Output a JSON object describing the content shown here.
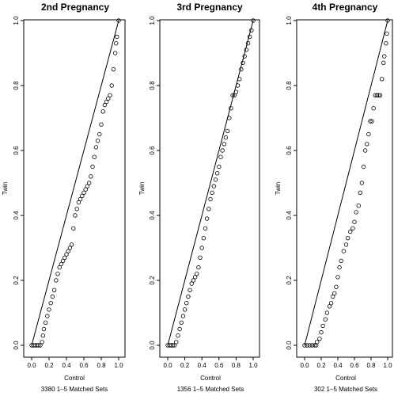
{
  "chart_data": [
    {
      "type": "scatter",
      "title": "2nd Pregnancy",
      "xlabel": "Control",
      "ylabel": "Twin",
      "subtitle": "3380 1–5 Matched Sets",
      "xlim": [
        0,
        1
      ],
      "ylim": [
        0,
        1
      ],
      "x_ticks": [
        "0.0",
        "0.2",
        "0.4",
        "0.6",
        "0.8",
        "1.0"
      ],
      "y_ticks": [
        "0.0",
        "0.2",
        "0.4",
        "0.6",
        "0.8",
        "1.0"
      ],
      "reference_line": "y = x",
      "marker": "open circle",
      "points": [
        [
          0.0,
          0.0
        ],
        [
          0.02,
          0.0
        ],
        [
          0.04,
          0.0
        ],
        [
          0.06,
          0.0
        ],
        [
          0.08,
          0.0
        ],
        [
          0.1,
          0.0
        ],
        [
          0.12,
          0.01
        ],
        [
          0.13,
          0.03
        ],
        [
          0.14,
          0.05
        ],
        [
          0.16,
          0.07
        ],
        [
          0.18,
          0.09
        ],
        [
          0.2,
          0.11
        ],
        [
          0.22,
          0.13
        ],
        [
          0.24,
          0.15
        ],
        [
          0.26,
          0.17
        ],
        [
          0.28,
          0.2
        ],
        [
          0.3,
          0.22
        ],
        [
          0.32,
          0.24
        ],
        [
          0.34,
          0.25
        ],
        [
          0.36,
          0.26
        ],
        [
          0.38,
          0.27
        ],
        [
          0.4,
          0.28
        ],
        [
          0.42,
          0.29
        ],
        [
          0.44,
          0.3
        ],
        [
          0.46,
          0.31
        ],
        [
          0.48,
          0.36
        ],
        [
          0.5,
          0.4
        ],
        [
          0.52,
          0.42
        ],
        [
          0.54,
          0.44
        ],
        [
          0.56,
          0.45
        ],
        [
          0.58,
          0.46
        ],
        [
          0.6,
          0.47
        ],
        [
          0.62,
          0.48
        ],
        [
          0.64,
          0.49
        ],
        [
          0.66,
          0.5
        ],
        [
          0.68,
          0.52
        ],
        [
          0.7,
          0.55
        ],
        [
          0.72,
          0.58
        ],
        [
          0.74,
          0.61
        ],
        [
          0.76,
          0.63
        ],
        [
          0.78,
          0.65
        ],
        [
          0.8,
          0.68
        ],
        [
          0.82,
          0.72
        ],
        [
          0.84,
          0.74
        ],
        [
          0.86,
          0.75
        ],
        [
          0.88,
          0.76
        ],
        [
          0.9,
          0.77
        ],
        [
          0.92,
          0.8
        ],
        [
          0.94,
          0.85
        ],
        [
          0.96,
          0.9
        ],
        [
          0.97,
          0.93
        ],
        [
          0.98,
          0.95
        ],
        [
          1.0,
          1.0
        ]
      ]
    },
    {
      "type": "scatter",
      "title": "3rd Pregnancy",
      "xlabel": "Control",
      "ylabel": "Twin",
      "subtitle": "1356 1–5 Matched Sets",
      "xlim": [
        0,
        1
      ],
      "ylim": [
        0,
        1
      ],
      "x_ticks": [
        "0.0",
        "0.2",
        "0.4",
        "0.6",
        "0.8",
        "1.0"
      ],
      "y_ticks": [
        "0.0",
        "0.2",
        "0.4",
        "0.6",
        "0.8",
        "1.0"
      ],
      "reference_line": "y = x",
      "marker": "open circle",
      "points": [
        [
          0.0,
          0.0
        ],
        [
          0.02,
          0.0
        ],
        [
          0.04,
          0.0
        ],
        [
          0.06,
          0.0
        ],
        [
          0.08,
          0.0
        ],
        [
          0.1,
          0.01
        ],
        [
          0.12,
          0.03
        ],
        [
          0.14,
          0.05
        ],
        [
          0.16,
          0.07
        ],
        [
          0.18,
          0.09
        ],
        [
          0.2,
          0.11
        ],
        [
          0.22,
          0.13
        ],
        [
          0.24,
          0.15
        ],
        [
          0.26,
          0.17
        ],
        [
          0.28,
          0.19
        ],
        [
          0.3,
          0.2
        ],
        [
          0.32,
          0.21
        ],
        [
          0.34,
          0.22
        ],
        [
          0.36,
          0.24
        ],
        [
          0.38,
          0.27
        ],
        [
          0.4,
          0.3
        ],
        [
          0.42,
          0.33
        ],
        [
          0.44,
          0.36
        ],
        [
          0.46,
          0.39
        ],
        [
          0.48,
          0.42
        ],
        [
          0.5,
          0.45
        ],
        [
          0.52,
          0.47
        ],
        [
          0.54,
          0.49
        ],
        [
          0.56,
          0.51
        ],
        [
          0.58,
          0.53
        ],
        [
          0.6,
          0.55
        ],
        [
          0.62,
          0.58
        ],
        [
          0.64,
          0.6
        ],
        [
          0.66,
          0.62
        ],
        [
          0.68,
          0.64
        ],
        [
          0.7,
          0.66
        ],
        [
          0.72,
          0.7
        ],
        [
          0.74,
          0.73
        ],
        [
          0.76,
          0.77
        ],
        [
          0.78,
          0.77
        ],
        [
          0.8,
          0.78
        ],
        [
          0.82,
          0.8
        ],
        [
          0.84,
          0.82
        ],
        [
          0.86,
          0.85
        ],
        [
          0.88,
          0.87
        ],
        [
          0.9,
          0.89
        ],
        [
          0.92,
          0.91
        ],
        [
          0.94,
          0.93
        ],
        [
          0.96,
          0.95
        ],
        [
          0.98,
          0.97
        ],
        [
          1.0,
          1.0
        ]
      ]
    },
    {
      "type": "scatter",
      "title": "4th Pregnancy",
      "xlabel": "Control",
      "ylabel": "Twin",
      "subtitle": "302 1–5 Matched Sets",
      "xlim": [
        0,
        1
      ],
      "ylim": [
        0,
        1
      ],
      "x_ticks": [
        "0.0",
        "0.2",
        "0.4",
        "0.6",
        "0.8",
        "1.0"
      ],
      "y_ticks": [
        "0.0",
        "0.2",
        "0.4",
        "0.6",
        "0.8",
        "1.0"
      ],
      "reference_line": "y = x",
      "marker": "open circle",
      "points": [
        [
          0.0,
          0.0
        ],
        [
          0.03,
          0.0
        ],
        [
          0.06,
          0.0
        ],
        [
          0.09,
          0.0
        ],
        [
          0.12,
          0.0
        ],
        [
          0.14,
          0.0
        ],
        [
          0.15,
          0.01
        ],
        [
          0.18,
          0.02
        ],
        [
          0.2,
          0.04
        ],
        [
          0.22,
          0.06
        ],
        [
          0.25,
          0.08
        ],
        [
          0.27,
          0.1
        ],
        [
          0.3,
          0.12
        ],
        [
          0.32,
          0.13
        ],
        [
          0.34,
          0.15
        ],
        [
          0.36,
          0.16
        ],
        [
          0.38,
          0.18
        ],
        [
          0.4,
          0.21
        ],
        [
          0.42,
          0.24
        ],
        [
          0.44,
          0.26
        ],
        [
          0.47,
          0.29
        ],
        [
          0.5,
          0.31
        ],
        [
          0.52,
          0.33
        ],
        [
          0.55,
          0.35
        ],
        [
          0.58,
          0.36
        ],
        [
          0.6,
          0.38
        ],
        [
          0.62,
          0.41
        ],
        [
          0.65,
          0.43
        ],
        [
          0.67,
          0.47
        ],
        [
          0.69,
          0.5
        ],
        [
          0.71,
          0.55
        ],
        [
          0.73,
          0.6
        ],
        [
          0.75,
          0.62
        ],
        [
          0.77,
          0.65
        ],
        [
          0.79,
          0.69
        ],
        [
          0.81,
          0.69
        ],
        [
          0.83,
          0.73
        ],
        [
          0.85,
          0.77
        ],
        [
          0.87,
          0.77
        ],
        [
          0.89,
          0.77
        ],
        [
          0.91,
          0.77
        ],
        [
          0.93,
          0.82
        ],
        [
          0.95,
          0.87
        ],
        [
          0.96,
          0.89
        ],
        [
          0.98,
          0.93
        ],
        [
          0.99,
          0.96
        ],
        [
          1.0,
          1.0
        ]
      ]
    }
  ]
}
